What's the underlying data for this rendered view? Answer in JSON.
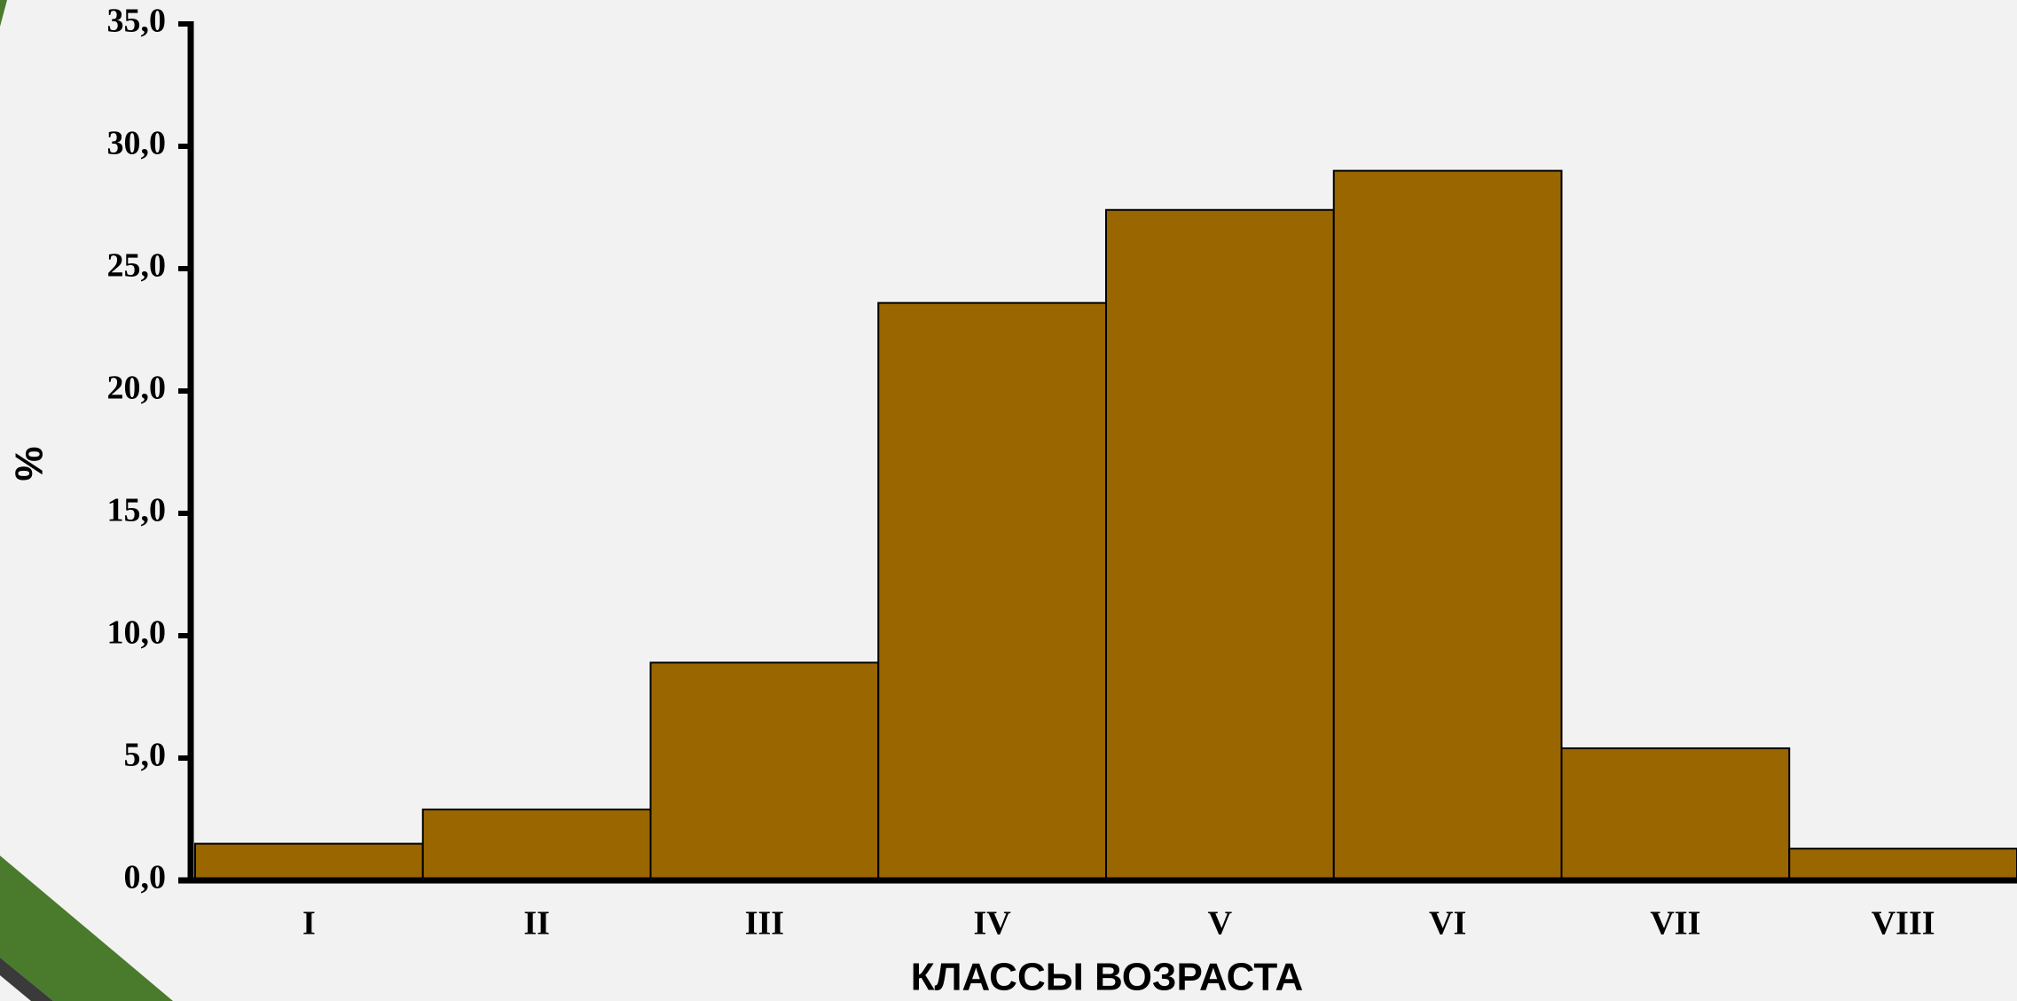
{
  "chart_data": {
    "type": "bar",
    "categories": [
      "I",
      "II",
      "III",
      "IV",
      "V",
      "VI",
      "VII",
      "VIII"
    ],
    "values": [
      1.5,
      2.9,
      8.9,
      23.6,
      27.4,
      29.0,
      5.4,
      1.3
    ],
    "color": "#996600",
    "xlabel": "КЛАССЫ ВОЗРАСТА",
    "ylabel": "%",
    "ylim": [
      0,
      35
    ],
    "yticks": [
      {
        "value": 0,
        "label": "0,0"
      },
      {
        "value": 5,
        "label": "5,0"
      },
      {
        "value": 10,
        "label": "10,0"
      },
      {
        "value": 15,
        "label": "15,0"
      },
      {
        "value": 20,
        "label": "20,0"
      },
      {
        "value": 25,
        "label": "25,0"
      },
      {
        "value": 30,
        "label": "30,0"
      },
      {
        "value": 35,
        "label": "35,0"
      }
    ],
    "grid": false
  }
}
